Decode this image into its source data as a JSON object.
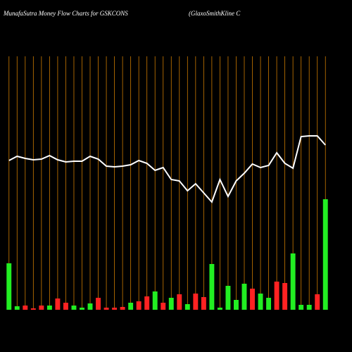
{
  "chart_data": {
    "type": "money-flow",
    "title": "MunafaSutra  Money Flow  Charts for GSKCONS",
    "subtitle": "(GlaxoSmithKline   C",
    "categories": [
      null,
      null,
      null,
      null,
      null,
      null,
      null,
      null,
      null,
      null,
      null,
      null,
      null,
      null,
      null,
      null,
      null,
      null,
      null,
      null,
      null,
      null,
      null,
      null,
      null,
      null,
      null,
      null,
      null,
      null,
      null,
      null,
      null,
      null,
      null,
      null,
      null,
      null,
      null,
      null
    ],
    "series": [
      {
        "type": "bar",
        "colors": [
          "#22ee22",
          "#22ee22",
          "#ff2222",
          "#ff2222",
          "#ff2222",
          "#22ee22",
          "#ff2222",
          "#ff2222",
          "#22ee22",
          "#22ee22",
          "#22ee22",
          "#ff2222",
          "#ff2222",
          "#ff2222",
          "#ff2222",
          "#22ee22",
          "#ff2222",
          "#ff2222",
          "#22ee22",
          "#ff2222",
          "#22ee22",
          "#ff2222",
          "#22ee22",
          "#ff2222",
          "#ff2222",
          "#22ee22",
          "#22ee22",
          "#22ee22",
          "#22ee22",
          "#22ee22",
          "#ff2222",
          "#22ee22",
          "#22ee22",
          "#ff2222",
          "#ff2222",
          "#22ee22",
          "#22ee22",
          "#22ee22",
          "#ff2222",
          "#22ee22"
        ],
        "values": [
          66,
          5,
          6,
          2,
          6,
          6,
          16,
          10,
          6,
          3,
          9,
          17,
          3,
          3,
          4,
          10,
          12,
          19,
          26,
          10,
          17,
          22,
          8,
          23,
          18,
          65,
          3,
          34,
          14,
          37,
          30,
          23,
          17,
          40,
          38,
          80,
          7,
          7,
          22,
          157
        ]
      },
      {
        "type": "line",
        "color": "#ffffff",
        "values": [
          272,
          278,
          275,
          273,
          274,
          279,
          273,
          270,
          271,
          271,
          278,
          274,
          264,
          263,
          264,
          266,
          272,
          268,
          258,
          262,
          245,
          243,
          229,
          239,
          226,
          213,
          245,
          221,
          243,
          254,
          267,
          262,
          265,
          283,
          268,
          261,
          306,
          307,
          307,
          294
        ]
      }
    ],
    "ylim": [
      0,
      360
    ],
    "y2lim": [
      0,
      500
    ],
    "grid": true,
    "grid_color": "#cc7a00"
  }
}
